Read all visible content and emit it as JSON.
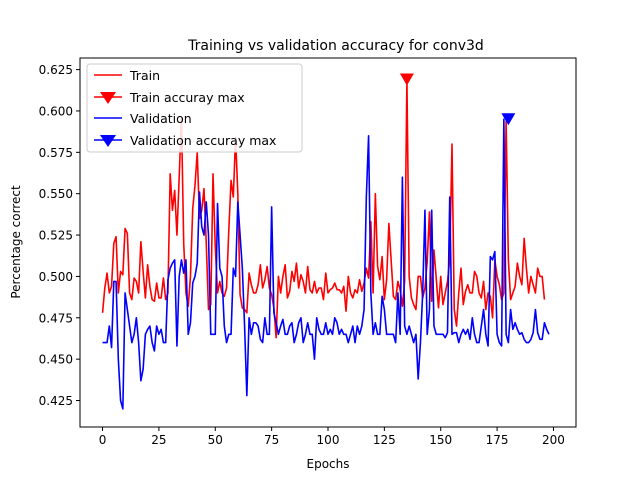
{
  "chart_data": {
    "type": "line",
    "title": "Training vs validation accuracy for conv3d",
    "xlabel": "Epochs",
    "ylabel": "Percentage correct",
    "xlim": [
      -10,
      210
    ],
    "ylim": [
      0.409,
      0.632
    ],
    "xticks": [
      0,
      25,
      50,
      75,
      100,
      125,
      150,
      175,
      200
    ],
    "yticks": [
      0.425,
      0.45,
      0.475,
      0.5,
      0.525,
      0.55,
      0.575,
      0.6,
      0.625
    ],
    "ytick_labels": [
      "0.425",
      "0.450",
      "0.475",
      "0.500",
      "0.525",
      "0.550",
      "0.575",
      "0.600",
      "0.625"
    ],
    "grid": false,
    "legend_position": "upper left",
    "colors": {
      "train": "#ff0000",
      "validation": "#0000ff"
    },
    "series": [
      {
        "name": "Train",
        "color": "#ff0000",
        "x_start": 0,
        "values": [
          0.478,
          0.493,
          0.502,
          0.49,
          0.494,
          0.52,
          0.524,
          0.49,
          0.503,
          0.501,
          0.529,
          0.526,
          0.49,
          0.486,
          0.499,
          0.497,
          0.49,
          0.521,
          0.503,
          0.487,
          0.507,
          0.494,
          0.486,
          0.485,
          0.496,
          0.487,
          0.487,
          0.499,
          0.486,
          0.49,
          0.562,
          0.54,
          0.552,
          0.525,
          0.56,
          0.596,
          0.52,
          0.49,
          0.482,
          0.5,
          0.541,
          0.555,
          0.575,
          0.535,
          0.54,
          0.553,
          0.52,
          0.48,
          0.483,
          0.562,
          0.518,
          0.49,
          0.497,
          0.49,
          0.488,
          0.493,
          0.528,
          0.558,
          0.548,
          0.584,
          0.55,
          0.489,
          0.481,
          0.48,
          0.478,
          0.502,
          0.495,
          0.49,
          0.49,
          0.495,
          0.507,
          0.493,
          0.498,
          0.506,
          0.493,
          0.489,
          0.481,
          0.463,
          0.5,
          0.49,
          0.5,
          0.507,
          0.487,
          0.491,
          0.503,
          0.497,
          0.508,
          0.493,
          0.501,
          0.497,
          0.49,
          0.506,
          0.492,
          0.49,
          0.497,
          0.49,
          0.493,
          0.493,
          0.486,
          0.502,
          0.49,
          0.492,
          0.493,
          0.496,
          0.492,
          0.492,
          0.49,
          0.494,
          0.479,
          0.5,
          0.49,
          0.487,
          0.492,
          0.49,
          0.498,
          0.491,
          0.496,
          0.505,
          0.499,
          0.533,
          0.49,
          0.55,
          0.506,
          0.498,
          0.512,
          0.486,
          0.498,
          0.532,
          0.51,
          0.488,
          0.486,
          0.497,
          0.492,
          0.482,
          0.497,
          0.619,
          0.5,
          0.487,
          0.483,
          0.48,
          0.5,
          0.5,
          0.487,
          0.493,
          0.509,
          0.539,
          0.485,
          0.516,
          0.499,
          0.481,
          0.5,
          0.483,
          0.49,
          0.497,
          0.51,
          0.58,
          0.48,
          0.47,
          0.49,
          0.505,
          0.483,
          0.491,
          0.495,
          0.49,
          0.49,
          0.503,
          0.5,
          0.49,
          0.487,
          0.497,
          0.48,
          0.49,
          0.488,
          0.475,
          0.51,
          0.5,
          0.495,
          0.486,
          0.49,
          0.594,
          0.51,
          0.486,
          0.49,
          0.494,
          0.508,
          0.5,
          0.495,
          0.523,
          0.505,
          0.49,
          0.5,
          0.495,
          0.49,
          0.505,
          0.5,
          0.5,
          0.486
        ]
      },
      {
        "name": "Validation",
        "color": "#0000ff",
        "x_start": 0,
        "values": [
          0.46,
          0.46,
          0.46,
          0.47,
          0.457,
          0.497,
          0.497,
          0.45,
          0.425,
          0.42,
          0.49,
          0.48,
          0.47,
          0.46,
          0.465,
          0.475,
          0.46,
          0.437,
          0.444,
          0.465,
          0.468,
          0.47,
          0.46,
          0.455,
          0.47,
          0.465,
          0.468,
          0.46,
          0.46,
          0.498,
          0.505,
          0.508,
          0.51,
          0.458,
          0.5,
          0.51,
          0.502,
          0.51,
          0.465,
          0.472,
          0.496,
          0.5,
          0.508,
          0.551,
          0.53,
          0.525,
          0.545,
          0.525,
          0.465,
          0.465,
          0.465,
          0.544,
          0.505,
          0.5,
          0.47,
          0.46,
          0.465,
          0.465,
          0.505,
          0.5,
          0.545,
          0.525,
          0.505,
          0.47,
          0.428,
          0.475,
          0.465,
          0.472,
          0.472,
          0.47,
          0.462,
          0.46,
          0.475,
          0.465,
          0.465,
          0.542,
          0.478,
          0.472,
          0.465,
          0.47,
          0.474,
          0.465,
          0.465,
          0.47,
          0.472,
          0.46,
          0.465,
          0.472,
          0.475,
          0.46,
          0.465,
          0.472,
          0.465,
          0.465,
          0.45,
          0.475,
          0.468,
          0.465,
          0.465,
          0.472,
          0.465,
          0.468,
          0.465,
          0.475,
          0.472,
          0.465,
          0.468,
          0.465,
          0.465,
          0.46,
          0.465,
          0.47,
          0.46,
          0.47,
          0.465,
          0.47,
          0.48,
          0.548,
          0.585,
          0.49,
          0.465,
          0.472,
          0.465,
          0.465,
          0.488,
          0.48,
          0.465,
          0.465,
          0.465,
          0.465,
          0.46,
          0.49,
          0.465,
          0.56,
          0.47,
          0.465,
          0.47,
          0.465,
          0.46,
          0.465,
          0.438,
          0.46,
          0.49,
          0.54,
          0.465,
          0.48,
          0.54,
          0.47,
          0.465,
          0.465,
          0.465,
          0.465,
          0.463,
          0.466,
          0.548,
          0.465,
          0.466,
          0.466,
          0.46,
          0.465,
          0.468,
          0.465,
          0.468,
          0.462,
          0.475,
          0.465,
          0.46,
          0.46,
          0.47,
          0.48,
          0.465,
          0.458,
          0.512,
          0.51,
          0.515,
          0.465,
          0.46,
          0.458,
          0.595,
          0.465,
          0.46,
          0.48,
          0.468,
          0.472,
          0.468,
          0.465,
          0.466,
          0.462,
          0.46,
          0.46,
          0.462,
          0.466,
          0.48,
          0.466,
          0.462,
          0.462,
          0.472,
          0.468,
          0.465
        ]
      }
    ],
    "markers": [
      {
        "name": "Train accuray max",
        "color": "#ff0000",
        "shape": "triangle-down",
        "x": 135,
        "y": 0.619
      },
      {
        "name": "Validation accuray max",
        "color": "#0000ff",
        "shape": "triangle-down",
        "x": 180,
        "y": 0.595
      }
    ]
  }
}
